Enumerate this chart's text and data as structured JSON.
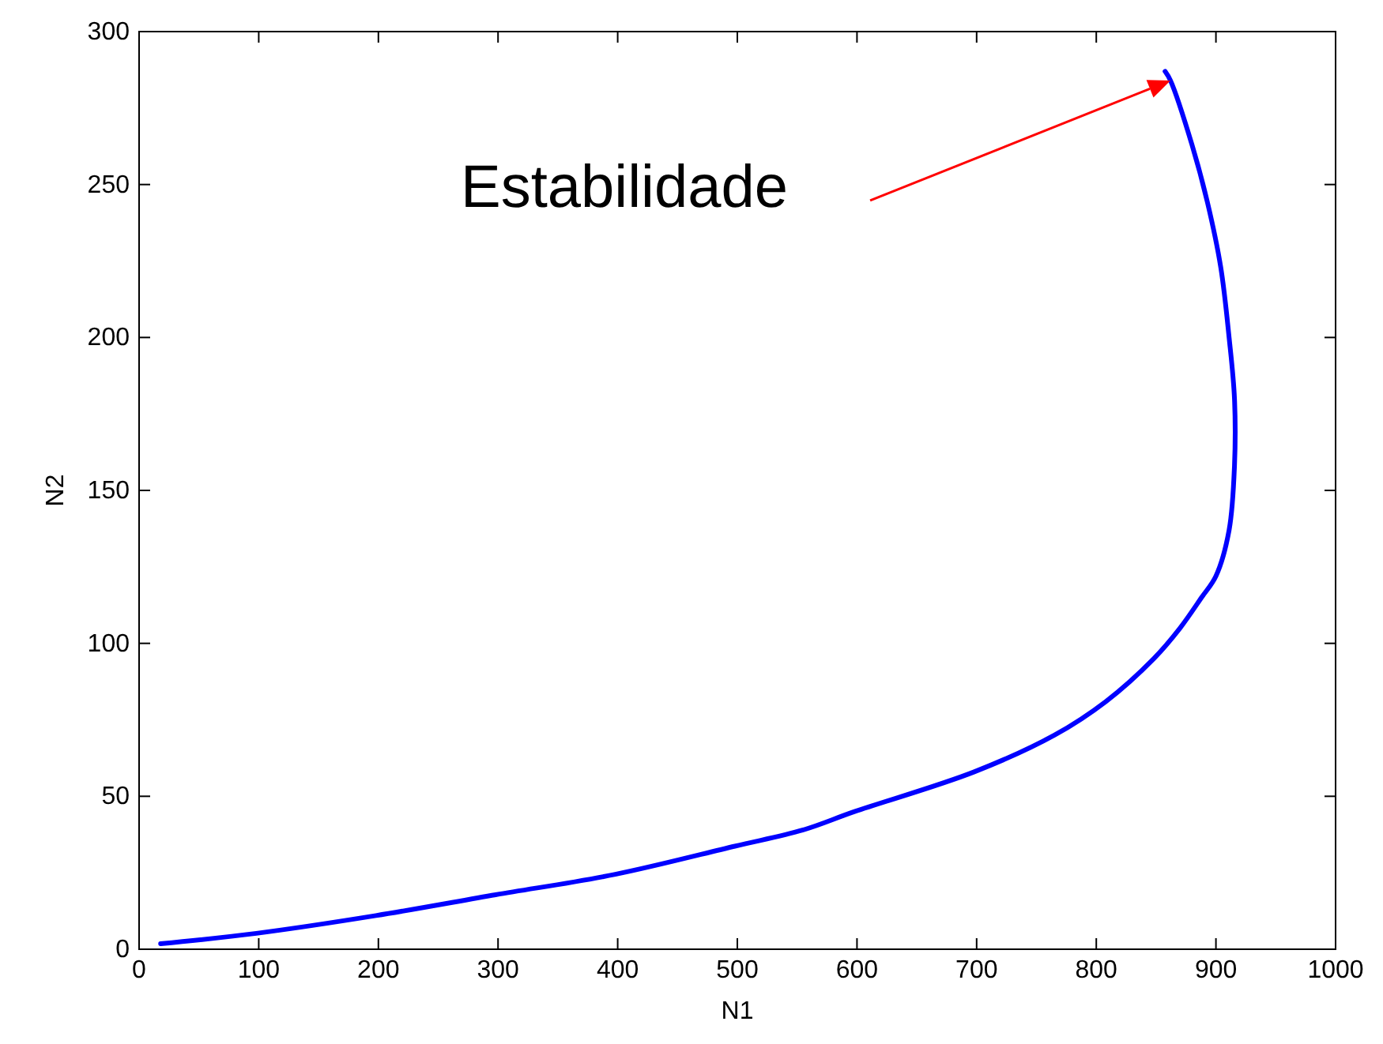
{
  "chart_data": {
    "type": "line",
    "xlabel": "N1",
    "ylabel": "N2",
    "xlim": [
      0,
      1000
    ],
    "ylim": [
      0,
      300
    ],
    "xticks": [
      0,
      100,
      200,
      300,
      400,
      500,
      600,
      700,
      800,
      900,
      1000
    ],
    "yticks": [
      0,
      50,
      100,
      150,
      200,
      250,
      300
    ],
    "grid": false,
    "annotations": [
      "Estabilidade"
    ],
    "series": [
      {
        "color": "#0000ff",
        "x": [
          18,
          98,
          198,
          298,
          398,
          498,
          555,
          598,
          698,
          765,
          808,
          848,
          870,
          888,
          900,
          911,
          915.5,
          915.5,
          911,
          904,
          893,
          880,
          862,
          857.5
        ],
        "values": [
          1.8,
          5.2,
          11,
          17.8,
          24.5,
          33.7,
          39,
          45,
          58,
          70,
          81,
          95,
          105,
          115,
          122,
          137,
          158,
          180,
          200,
          223,
          244,
          263,
          284,
          287
        ]
      }
    ]
  }
}
